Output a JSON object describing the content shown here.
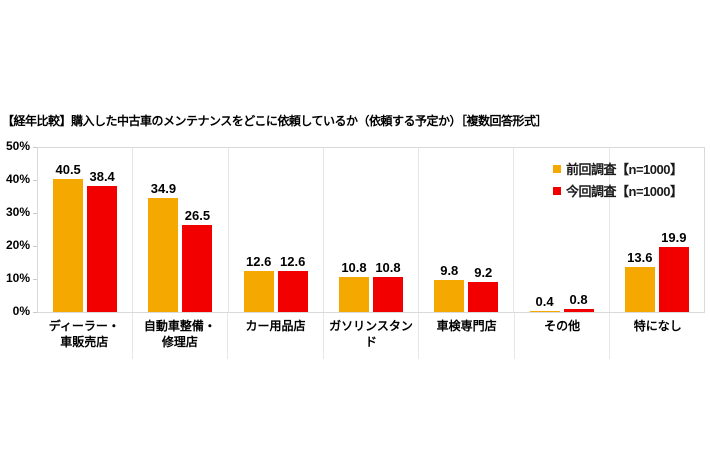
{
  "title": "【経年比較】購入した中古車のメンテナンスをどこに依頼しているか（依頼する予定か）［複数回答形式］",
  "colors": {
    "prev_series": "#F5A800",
    "current_series": "#F20000",
    "axis_border": "#D9D9D9",
    "category_separator": "#E7E7E7",
    "label_text": "#000000"
  },
  "y_axis": {
    "ticks": [
      "50%",
      "40%",
      "30%",
      "20%",
      "10%",
      "0%"
    ],
    "max": 50,
    "min": 0
  },
  "legend": {
    "position": "top-right",
    "items": [
      {
        "label": "前回調査【n=1000】",
        "color": "#F5A800"
      },
      {
        "label": "今回調査【n=1000】",
        "color": "#F20000"
      }
    ]
  },
  "chart_data": {
    "type": "bar",
    "title": "【経年比較】購入した中古車のメンテナンスをどこに依頼しているか（依頼する予定か）［複数回答形式］",
    "categories": [
      "ディーラー・車販売店",
      "自動車整備・修理店",
      "カー用品店",
      "ガソリンスタンド",
      "車検専門店",
      "その他",
      "特になし"
    ],
    "category_label_lines": [
      [
        "ディーラー・",
        "車販売店"
      ],
      [
        "自動車整備・",
        "修理店"
      ],
      [
        "カー用品店"
      ],
      [
        "ガソリンスタンド"
      ],
      [
        "車検専門店"
      ],
      [
        "その他"
      ],
      [
        "特になし"
      ]
    ],
    "series": [
      {
        "name": "前回調査【n=1000】",
        "color": "#F5A800",
        "values": [
          40.5,
          34.9,
          12.6,
          10.8,
          9.8,
          0.4,
          13.6
        ]
      },
      {
        "name": "今回調査【n=1000】",
        "color": "#F20000",
        "values": [
          38.4,
          26.5,
          12.6,
          10.8,
          9.2,
          0.8,
          19.9
        ]
      }
    ],
    "xlabel": "",
    "ylabel": "",
    "ylim": [
      0,
      50
    ],
    "grid": false,
    "value_labels": true,
    "legend_position": "top-right"
  }
}
